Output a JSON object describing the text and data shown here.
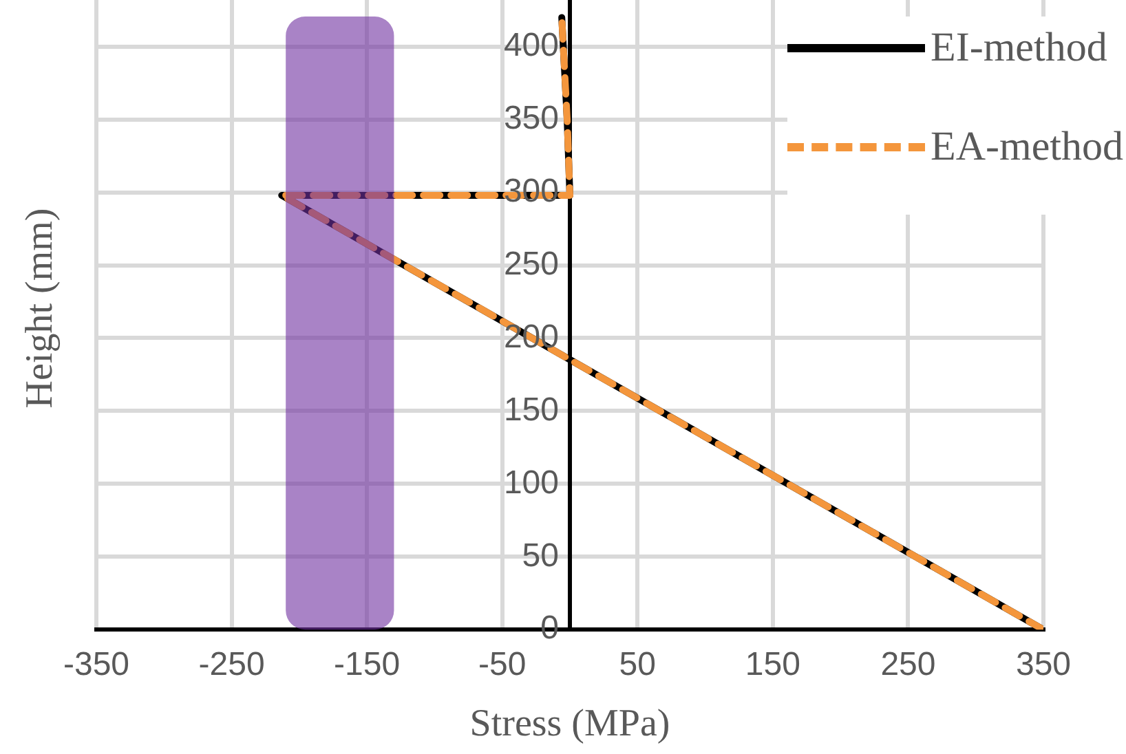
{
  "chart_data": {
    "type": "line",
    "xlabel": "Stress (MPa)",
    "ylabel": "Height (mm)",
    "xlim": [
      -350,
      350
    ],
    "xticks": [
      -350,
      -250,
      -150,
      -50,
      50,
      150,
      250,
      350
    ],
    "ylim": [
      0,
      432
    ],
    "yticks": [
      0,
      50,
      100,
      150,
      200,
      250,
      300,
      350,
      400
    ],
    "grid": true,
    "legend": "top right",
    "marker": "none",
    "series": [
      {
        "name": "EI-method",
        "color": "#000000",
        "line_style": "solid",
        "x": [
          350,
          -213,
          0,
          -2,
          -6
        ],
        "values": [
          0,
          298,
          298,
          350,
          420
        ]
      },
      {
        "name": "EA-method",
        "color": "#f4963c",
        "line_style": "dashed",
        "x": [
          350,
          -213,
          0,
          -2,
          -6
        ],
        "values": [
          0,
          298,
          298,
          350,
          420
        ]
      }
    ],
    "bands": [
      {
        "axis": "x",
        "from": -210,
        "to": -130,
        "color": "#7030a0"
      }
    ]
  }
}
